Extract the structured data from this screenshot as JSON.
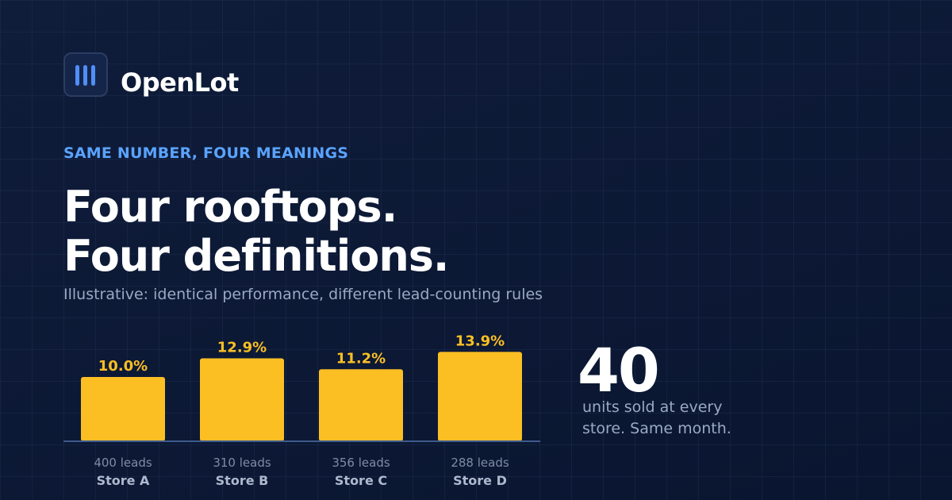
{
  "brand": {
    "name": "OpenLot",
    "icon": "bars-logo-icon",
    "accent": "#4f8ff7"
  },
  "eyebrow": "SAME NUMBER, FOUR MEANINGS",
  "headline": {
    "line1": "Four rooftops.",
    "line2": "Four definitions."
  },
  "subtitle": "Illustrative: identical performance, different lead-counting rules",
  "stat": {
    "value": "40",
    "caption": "units sold at every store. Same month."
  },
  "chart_data": {
    "type": "bar",
    "categories": [
      "Store A",
      "Store B",
      "Store C",
      "Store D"
    ],
    "leads_labels": [
      "400 leads",
      "310 leads",
      "356 leads",
      "288 leads"
    ],
    "values": [
      10.0,
      12.9,
      11.2,
      13.9
    ],
    "value_labels": [
      "10.0%",
      "12.9%",
      "11.2%",
      "13.9%"
    ],
    "bar_color": "#fbbf24",
    "label_color": "#fbbf24"
  }
}
